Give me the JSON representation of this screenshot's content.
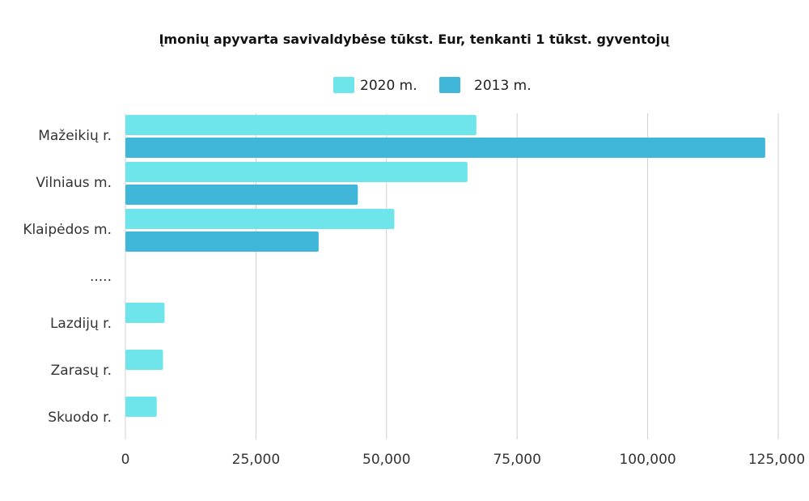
{
  "chart_data": {
    "type": "bar",
    "orientation": "horizontal",
    "title": "Įmonių apyvarta savivaldybėse tūkst. Eur, tenkanti 1 tūkst. gyventojų",
    "categories": [
      "Mažeikių r.",
      "Vilniaus m.",
      "Klaipėdos m.",
      ".....",
      "Lazdijų r.",
      "Zarasų r.",
      "Skuodo r."
    ],
    "series": [
      {
        "name": "2020 m.",
        "color": "#6ee5ea",
        "values": [
          67200,
          65500,
          51500,
          null,
          7500,
          7200,
          6000
        ]
      },
      {
        "name": "2013 m.",
        "color": "#40b6d8",
        "values": [
          122500,
          44500,
          37000,
          null,
          null,
          null,
          null
        ]
      }
    ],
    "xlim": [
      0,
      125000
    ],
    "xticks": [
      0,
      25000,
      50000,
      75000,
      100000,
      125000
    ],
    "xtick_labels": [
      "0",
      "25,000",
      "50,000",
      "75,000",
      "100,000",
      "125,000"
    ],
    "grid": "vertical",
    "legend": "top-center"
  }
}
